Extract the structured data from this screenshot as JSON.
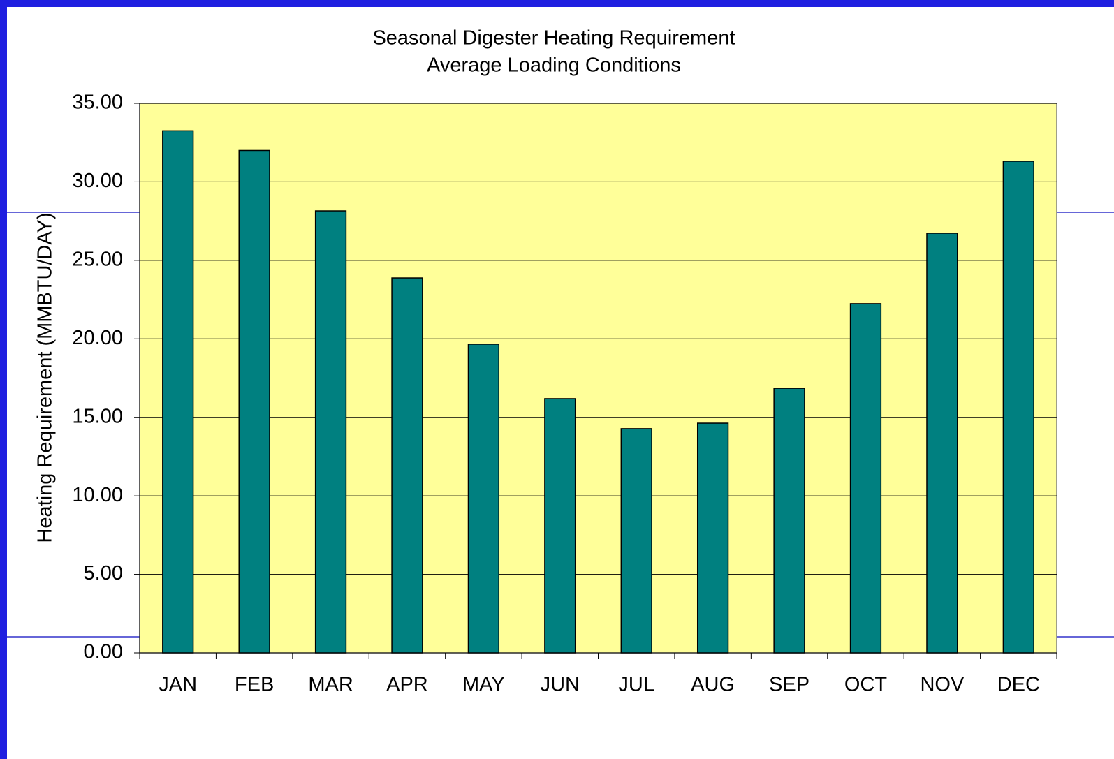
{
  "chart_data": {
    "type": "bar",
    "title": "Seasonal Digester Heating Requirement",
    "subtitle": "Average Loading Conditions",
    "y_label": "Heating Requirement (MMBTU/DAY)",
    "categories": [
      "JAN",
      "FEB",
      "MAR",
      "APR",
      "MAY",
      "JUN",
      "JUL",
      "AUG",
      "SEP",
      "OCT",
      "NOV",
      "DEC"
    ],
    "values": [
      33.25,
      32.0,
      28.15,
      23.88,
      19.66,
      16.19,
      14.28,
      14.63,
      16.85,
      22.24,
      26.73,
      31.31
    ],
    "color": "#008080",
    "plot_background": "#ffff99",
    "ylim": [
      0,
      35
    ],
    "yticks": [
      {
        "value": 0,
        "label": "0.00"
      },
      {
        "value": 5,
        "label": "5.00"
      },
      {
        "value": 10,
        "label": "10.00"
      },
      {
        "value": 15,
        "label": "15.00"
      },
      {
        "value": 20,
        "label": "20.00"
      },
      {
        "value": 25,
        "label": "25.00"
      },
      {
        "value": 30,
        "label": "30.00"
      },
      {
        "value": 35,
        "label": "35.00"
      }
    ],
    "grid": true
  }
}
